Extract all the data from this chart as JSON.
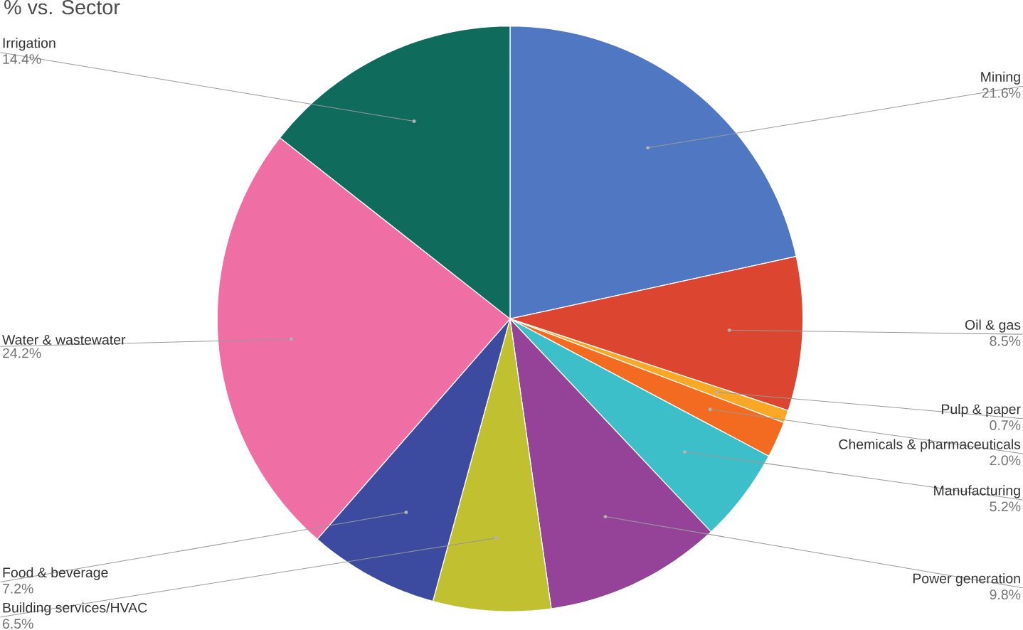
{
  "chart_data": {
    "type": "pie",
    "title": "% vs. Sector",
    "categories": [
      "Mining",
      "Oil & gas",
      "Pulp & paper",
      "Chemicals & pharmaceuticals",
      "Manufacturing",
      "Power generation",
      "Building services/HVAC",
      "Food & beverage",
      "Water & wastewater",
      "Irrigation"
    ],
    "values": [
      21.6,
      8.5,
      0.7,
      2.0,
      5.2,
      9.8,
      6.5,
      7.2,
      24.2,
      14.4
    ],
    "value_labels": [
      "21.6%",
      "8.5%",
      "0.7%",
      "2.0%",
      "5.2%",
      "9.8%",
      "6.5%",
      "7.2%",
      "24.2%",
      "14.4%"
    ],
    "colors": [
      "#5078c2",
      "#dc4630",
      "#f9a825",
      "#f26b21",
      "#3cbfc9",
      "#954399",
      "#c0c031",
      "#3c4ba0",
      "#ef6fa5",
      "#0f6b5c"
    ]
  }
}
